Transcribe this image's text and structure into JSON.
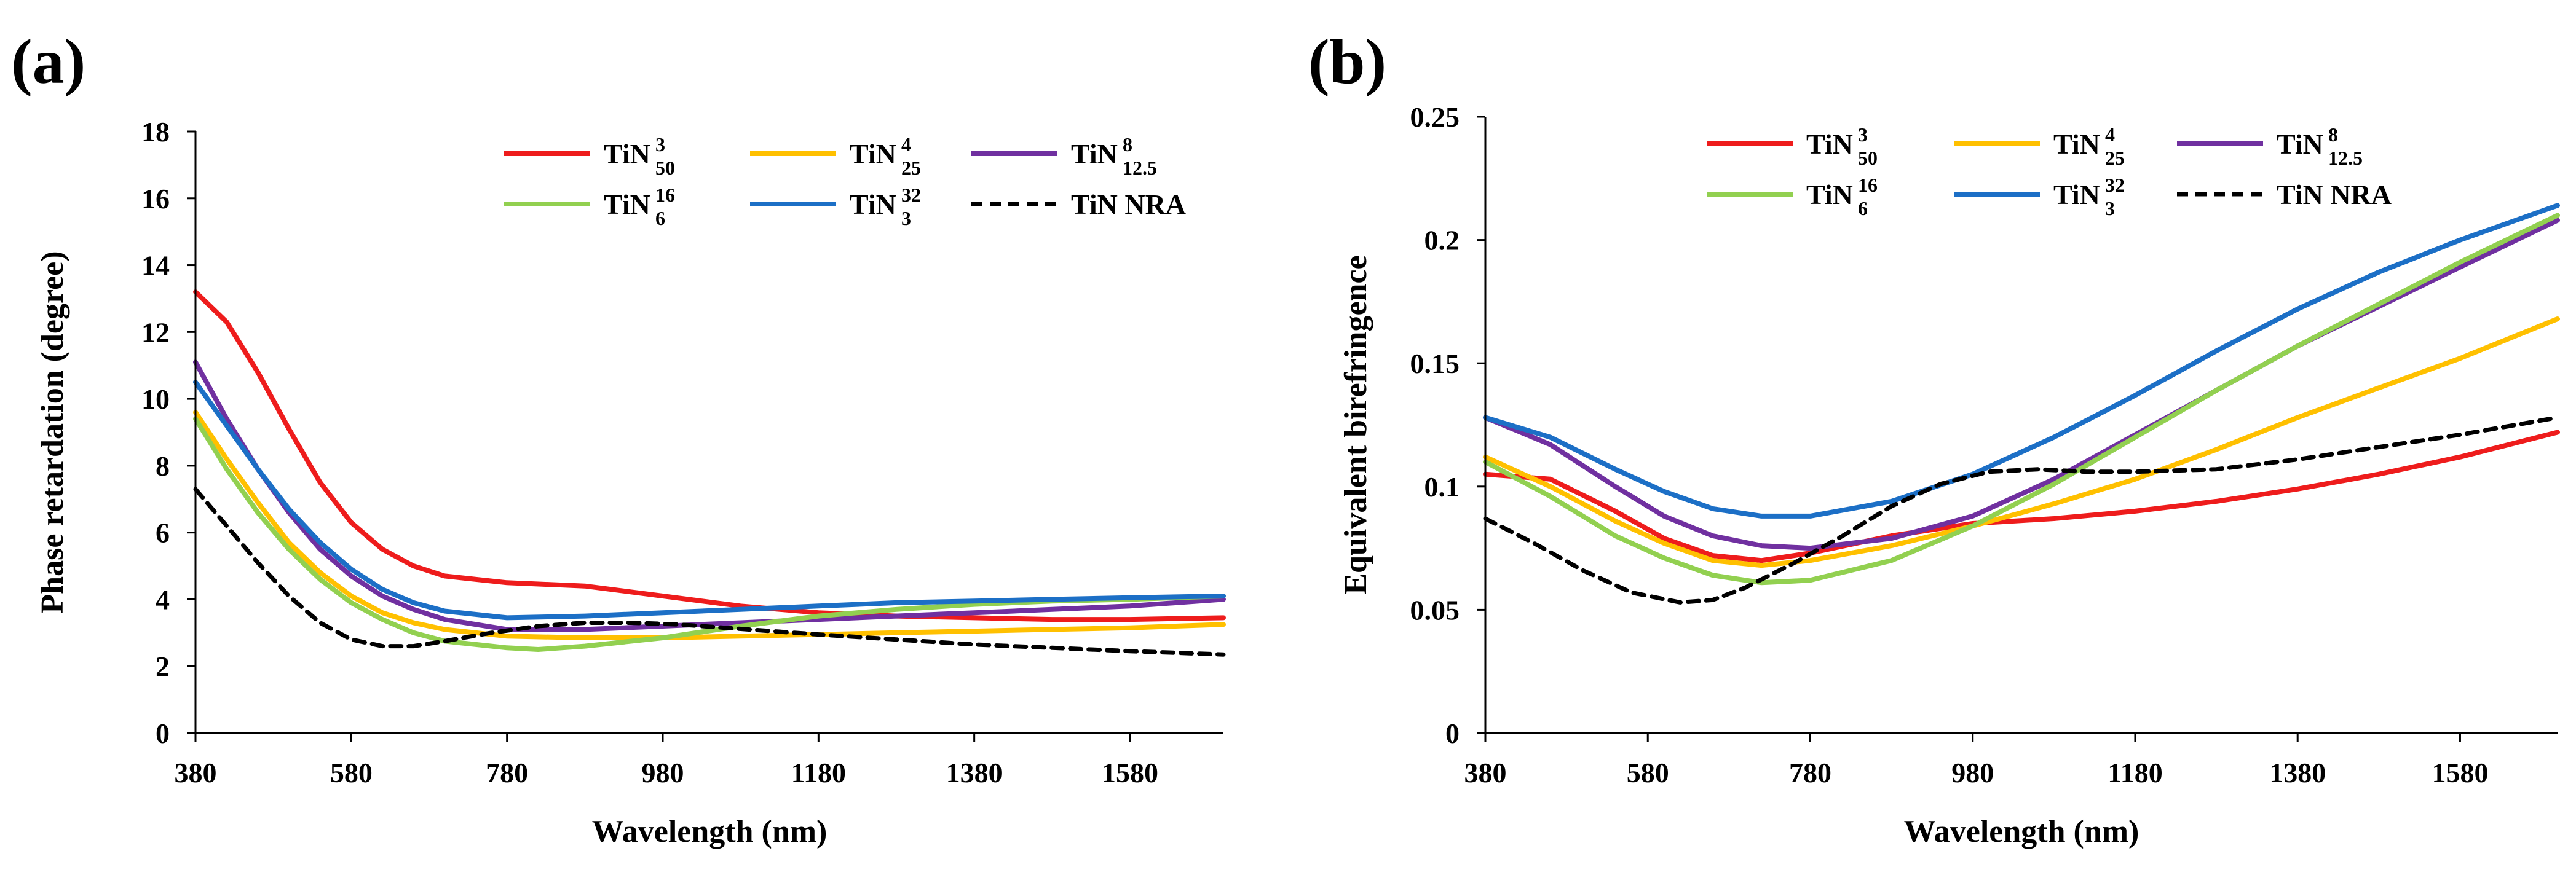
{
  "colors": {
    "TiN_3_50": "#ee1c1c",
    "TiN_4_25": "#ffc000",
    "TiN_8_12_5": "#7030a0",
    "TiN_16_6": "#92d050",
    "TiN_32_3": "#1c6fc6",
    "TiN_NRA": "#000000"
  },
  "chart_data": [
    {
      "panel_label": "(a)",
      "type": "line",
      "xlabel": "Wavelength (nm)",
      "ylabel": "Phase retardation (degree)",
      "xlim": [
        380,
        1700
      ],
      "ylim": [
        0,
        18
      ],
      "xticks": [
        "380",
        "580",
        "780",
        "980",
        "1180",
        "1380",
        "1580"
      ],
      "yticks": [
        "0",
        "2",
        "4",
        "6",
        "8",
        "10",
        "12",
        "14",
        "16",
        "18"
      ],
      "legend_position": "top-right",
      "series": [
        {
          "key": "TiN_3_50",
          "base": "TiN",
          "sup": "3",
          "sub": "50",
          "dashed": false,
          "x": [
            380,
            420,
            460,
            500,
            540,
            580,
            620,
            660,
            700,
            780,
            880,
            980,
            1080,
            1180,
            1280,
            1380,
            1480,
            1580,
            1700
          ],
          "y": [
            13.2,
            12.3,
            10.8,
            9.1,
            7.5,
            6.3,
            5.5,
            5.0,
            4.7,
            4.5,
            4.4,
            4.1,
            3.8,
            3.6,
            3.5,
            3.45,
            3.4,
            3.4,
            3.45
          ]
        },
        {
          "key": "TiN_4_25",
          "base": "TiN",
          "sup": "4",
          "sub": "25",
          "dashed": false,
          "x": [
            380,
            420,
            460,
            500,
            540,
            580,
            620,
            660,
            700,
            780,
            880,
            980,
            1080,
            1180,
            1280,
            1380,
            1480,
            1580,
            1700
          ],
          "y": [
            9.6,
            8.2,
            6.9,
            5.7,
            4.8,
            4.1,
            3.6,
            3.3,
            3.1,
            2.9,
            2.85,
            2.85,
            2.9,
            2.95,
            3.0,
            3.05,
            3.1,
            3.15,
            3.25
          ]
        },
        {
          "key": "TiN_8_12_5",
          "base": "TiN",
          "sup": "8",
          "sub": "12.5",
          "dashed": false,
          "x": [
            380,
            420,
            460,
            500,
            540,
            580,
            620,
            660,
            700,
            780,
            880,
            980,
            1080,
            1180,
            1280,
            1380,
            1480,
            1580,
            1700
          ],
          "y": [
            11.1,
            9.4,
            7.9,
            6.6,
            5.5,
            4.7,
            4.1,
            3.7,
            3.4,
            3.1,
            3.1,
            3.2,
            3.3,
            3.4,
            3.5,
            3.6,
            3.7,
            3.8,
            4.0
          ]
        },
        {
          "key": "TiN_16_6",
          "base": "TiN",
          "sup": "16",
          "sub": "6",
          "dashed": false,
          "x": [
            380,
            420,
            460,
            500,
            540,
            580,
            620,
            660,
            700,
            780,
            820,
            880,
            980,
            1080,
            1180,
            1280,
            1380,
            1480,
            1580,
            1700
          ],
          "y": [
            9.4,
            7.9,
            6.6,
            5.5,
            4.6,
            3.9,
            3.4,
            3.0,
            2.75,
            2.55,
            2.5,
            2.6,
            2.85,
            3.2,
            3.5,
            3.7,
            3.85,
            3.95,
            4.0,
            4.1
          ]
        },
        {
          "key": "TiN_32_3",
          "base": "TiN",
          "sup": "32",
          "sub": "3",
          "dashed": false,
          "x": [
            380,
            420,
            460,
            500,
            540,
            580,
            620,
            660,
            700,
            780,
            880,
            980,
            1080,
            1180,
            1280,
            1380,
            1480,
            1580,
            1700
          ],
          "y": [
            10.5,
            9.2,
            7.9,
            6.7,
            5.7,
            4.9,
            4.3,
            3.9,
            3.65,
            3.45,
            3.5,
            3.6,
            3.7,
            3.8,
            3.9,
            3.95,
            4.0,
            4.05,
            4.1
          ]
        },
        {
          "key": "TiN_NRA",
          "base": "TiN NRA",
          "sup": "",
          "sub": "",
          "dashed": true,
          "x": [
            380,
            420,
            460,
            500,
            540,
            580,
            620,
            660,
            700,
            760,
            820,
            880,
            940,
            1000,
            1060,
            1180,
            1280,
            1380,
            1480,
            1580,
            1700
          ],
          "y": [
            7.3,
            6.2,
            5.1,
            4.1,
            3.3,
            2.8,
            2.6,
            2.6,
            2.75,
            3.0,
            3.2,
            3.3,
            3.3,
            3.25,
            3.15,
            2.95,
            2.8,
            2.65,
            2.55,
            2.45,
            2.35
          ]
        }
      ]
    },
    {
      "panel_label": "(b)",
      "type": "line",
      "xlabel": "Wavelength (nm)",
      "ylabel": "Equivalent birefringence",
      "xlim": [
        380,
        1700
      ],
      "ylim": [
        0,
        0.25
      ],
      "xticks": [
        "380",
        "580",
        "780",
        "980",
        "1180",
        "1380",
        "1580"
      ],
      "yticks": [
        "0",
        "0.05",
        "0.1",
        "0.15",
        "0.2",
        "0.25"
      ],
      "legend_position": "top-right",
      "series": [
        {
          "key": "TiN_3_50",
          "base": "TiN",
          "sup": "3",
          "sub": "50",
          "dashed": false,
          "x": [
            380,
            460,
            540,
            600,
            660,
            720,
            780,
            880,
            980,
            1080,
            1180,
            1280,
            1380,
            1480,
            1580,
            1700
          ],
          "y": [
            0.105,
            0.103,
            0.09,
            0.079,
            0.072,
            0.07,
            0.073,
            0.08,
            0.085,
            0.087,
            0.09,
            0.094,
            0.099,
            0.105,
            0.112,
            0.122
          ]
        },
        {
          "key": "TiN_4_25",
          "base": "TiN",
          "sup": "4",
          "sub": "25",
          "dashed": false,
          "x": [
            380,
            460,
            540,
            600,
            660,
            720,
            780,
            880,
            980,
            1080,
            1180,
            1280,
            1380,
            1480,
            1580,
            1700
          ],
          "y": [
            0.112,
            0.1,
            0.086,
            0.077,
            0.07,
            0.068,
            0.07,
            0.076,
            0.084,
            0.093,
            0.103,
            0.115,
            0.128,
            0.14,
            0.152,
            0.168
          ]
        },
        {
          "key": "TiN_8_12_5",
          "base": "TiN",
          "sup": "8",
          "sub": "12.5",
          "dashed": false,
          "x": [
            380,
            460,
            540,
            600,
            660,
            720,
            780,
            880,
            980,
            1080,
            1180,
            1280,
            1380,
            1480,
            1580,
            1700
          ],
          "y": [
            0.128,
            0.117,
            0.1,
            0.088,
            0.08,
            0.076,
            0.075,
            0.079,
            0.088,
            0.103,
            0.121,
            0.139,
            0.157,
            0.173,
            0.189,
            0.208
          ]
        },
        {
          "key": "TiN_16_6",
          "base": "TiN",
          "sup": "16",
          "sub": "6",
          "dashed": false,
          "x": [
            380,
            460,
            540,
            600,
            660,
            720,
            780,
            880,
            980,
            1080,
            1180,
            1280,
            1380,
            1480,
            1580,
            1700
          ],
          "y": [
            0.11,
            0.096,
            0.08,
            0.071,
            0.064,
            0.061,
            0.062,
            0.07,
            0.084,
            0.101,
            0.12,
            0.139,
            0.157,
            0.174,
            0.191,
            0.21
          ]
        },
        {
          "key": "TiN_32_3",
          "base": "TiN",
          "sup": "32",
          "sub": "3",
          "dashed": false,
          "x": [
            380,
            460,
            540,
            600,
            660,
            720,
            780,
            880,
            980,
            1080,
            1180,
            1280,
            1380,
            1480,
            1580,
            1700
          ],
          "y": [
            0.128,
            0.12,
            0.107,
            0.098,
            0.091,
            0.088,
            0.088,
            0.094,
            0.105,
            0.12,
            0.137,
            0.155,
            0.172,
            0.187,
            0.2,
            0.214
          ]
        },
        {
          "key": "TiN_NRA",
          "base": "TiN NRA",
          "sup": "",
          "sub": "",
          "dashed": true,
          "x": [
            380,
            440,
            500,
            560,
            620,
            660,
            700,
            760,
            820,
            880,
            940,
            1000,
            1060,
            1120,
            1180,
            1280,
            1380,
            1480,
            1580,
            1700
          ],
          "y": [
            0.087,
            0.077,
            0.066,
            0.057,
            0.053,
            0.054,
            0.059,
            0.069,
            0.08,
            0.092,
            0.101,
            0.106,
            0.107,
            0.106,
            0.106,
            0.107,
            0.111,
            0.116,
            0.121,
            0.128
          ]
        }
      ]
    }
  ]
}
